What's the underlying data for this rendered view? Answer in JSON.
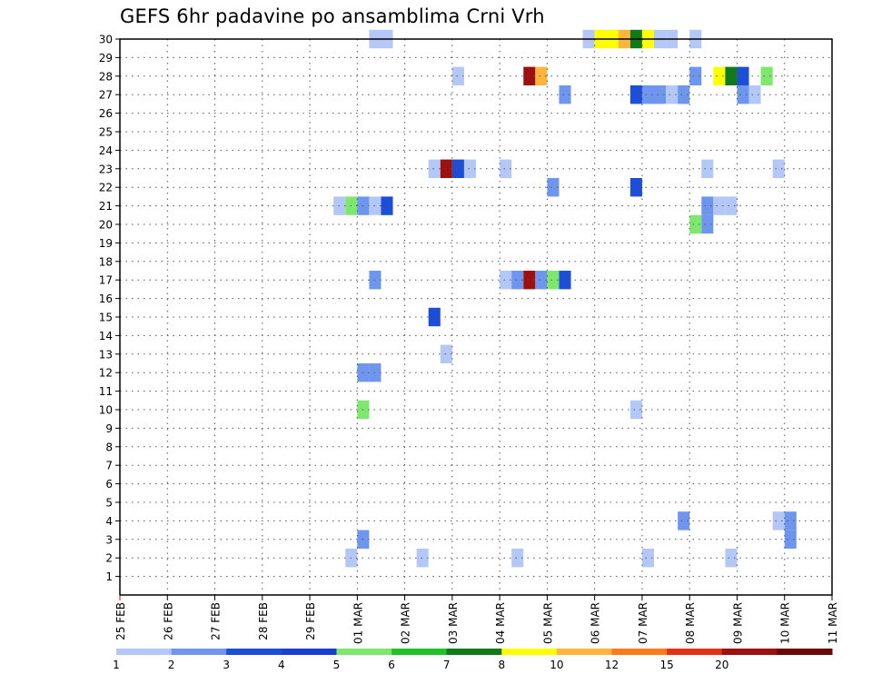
{
  "chart_data": {
    "type": "heatmap",
    "title": "GEFS 6hr padavine po ansamblima Crni Vrh",
    "y_ticks": [
      "1",
      "2",
      "3",
      "4",
      "5",
      "6",
      "7",
      "8",
      "9",
      "10",
      "11",
      "12",
      "13",
      "14",
      "15",
      "16",
      "17",
      "18",
      "19",
      "20",
      "21",
      "22",
      "23",
      "24",
      "25",
      "26",
      "27",
      "28",
      "29",
      "30"
    ],
    "ylim": [
      0,
      30
    ],
    "x_ticks": [
      "25 FEB",
      "26 FEB",
      "27 FEB",
      "28 FEB",
      "29 FEB",
      "01 MAR",
      "02 MAR",
      "03 MAR",
      "04 MAR",
      "05 MAR",
      "06 MAR",
      "07 MAR",
      "08 MAR",
      "09 MAR",
      "10 MAR",
      "11 MAR"
    ],
    "x_unit": "6-hour step (4 steps per day), 0 = 25 FEB 00Z",
    "xlim": [
      0,
      60
    ],
    "grid": true,
    "colorbar": {
      "levels": [
        "1",
        "2",
        "3",
        "4",
        "5",
        "6",
        "7",
        "8",
        "10",
        "12",
        "15",
        "20"
      ],
      "colors": [
        "#b4c8f8",
        "#6e96ee",
        "#1c4ed8",
        "#1a3fd0",
        "#7ee86c",
        "#22c02a",
        "#127a1a",
        "#ffff00",
        "#ffb43c",
        "#ff7a18",
        "#e03214",
        "#9e1010",
        "#6a0808"
      ]
    },
    "cells": [
      {
        "member": 30,
        "step": 21,
        "level": 1
      },
      {
        "member": 30,
        "step": 22,
        "level": 1
      },
      {
        "member": 30,
        "step": 39,
        "level": 1
      },
      {
        "member": 30,
        "step": 40,
        "level": 8
      },
      {
        "member": 30,
        "step": 41,
        "level": 8
      },
      {
        "member": 30,
        "step": 42,
        "level": 9
      },
      {
        "member": 30,
        "step": 43,
        "level": 7
      },
      {
        "member": 30,
        "step": 44,
        "level": 8
      },
      {
        "member": 30,
        "step": 45,
        "level": 1
      },
      {
        "member": 30,
        "step": 46,
        "level": 1
      },
      {
        "member": 30,
        "step": 48,
        "level": 1
      },
      {
        "member": 28,
        "step": 28,
        "level": 1
      },
      {
        "member": 28,
        "step": 34,
        "level": 12
      },
      {
        "member": 28,
        "step": 35,
        "level": 9
      },
      {
        "member": 28,
        "step": 48,
        "level": 2
      },
      {
        "member": 28,
        "step": 50,
        "level": 8
      },
      {
        "member": 28,
        "step": 51,
        "level": 7
      },
      {
        "member": 28,
        "step": 52,
        "level": 3
      },
      {
        "member": 28,
        "step": 54,
        "level": 5
      },
      {
        "member": 27,
        "step": 37,
        "level": 2
      },
      {
        "member": 27,
        "step": 43,
        "level": 3
      },
      {
        "member": 27,
        "step": 44,
        "level": 2
      },
      {
        "member": 27,
        "step": 45,
        "level": 2
      },
      {
        "member": 27,
        "step": 46,
        "level": 1
      },
      {
        "member": 27,
        "step": 47,
        "level": 2
      },
      {
        "member": 27,
        "step": 52,
        "level": 2
      },
      {
        "member": 27,
        "step": 53,
        "level": 1
      },
      {
        "member": 23,
        "step": 26,
        "level": 1
      },
      {
        "member": 23,
        "step": 27,
        "level": 12
      },
      {
        "member": 23,
        "step": 28,
        "level": 3
      },
      {
        "member": 23,
        "step": 29,
        "level": 1
      },
      {
        "member": 23,
        "step": 32,
        "level": 1
      },
      {
        "member": 23,
        "step": 49,
        "level": 1
      },
      {
        "member": 23,
        "step": 55,
        "level": 1
      },
      {
        "member": 22,
        "step": 36,
        "level": 2
      },
      {
        "member": 22,
        "step": 43,
        "level": 3
      },
      {
        "member": 21,
        "step": 18,
        "level": 1
      },
      {
        "member": 21,
        "step": 19,
        "level": 5
      },
      {
        "member": 21,
        "step": 20,
        "level": 2
      },
      {
        "member": 21,
        "step": 21,
        "level": 1
      },
      {
        "member": 21,
        "step": 22,
        "level": 3
      },
      {
        "member": 21,
        "step": 49,
        "level": 2
      },
      {
        "member": 21,
        "step": 50,
        "level": 1
      },
      {
        "member": 21,
        "step": 51,
        "level": 1
      },
      {
        "member": 20,
        "step": 48,
        "level": 5
      },
      {
        "member": 20,
        "step": 49,
        "level": 2
      },
      {
        "member": 17,
        "step": 21,
        "level": 2
      },
      {
        "member": 17,
        "step": 32,
        "level": 1
      },
      {
        "member": 17,
        "step": 33,
        "level": 2
      },
      {
        "member": 17,
        "step": 34,
        "level": 12
      },
      {
        "member": 17,
        "step": 35,
        "level": 2
      },
      {
        "member": 17,
        "step": 36,
        "level": 5
      },
      {
        "member": 17,
        "step": 37,
        "level": 3
      },
      {
        "member": 15,
        "step": 26,
        "level": 3
      },
      {
        "member": 13,
        "step": 27,
        "level": 1
      },
      {
        "member": 12,
        "step": 20,
        "level": 2
      },
      {
        "member": 12,
        "step": 21,
        "level": 2
      },
      {
        "member": 10,
        "step": 20,
        "level": 5
      },
      {
        "member": 10,
        "step": 43,
        "level": 1
      },
      {
        "member": 4,
        "step": 47,
        "level": 2
      },
      {
        "member": 4,
        "step": 55,
        "level": 1
      },
      {
        "member": 4,
        "step": 56,
        "level": 2
      },
      {
        "member": 3,
        "step": 20,
        "level": 2
      },
      {
        "member": 3,
        "step": 56,
        "level": 2
      },
      {
        "member": 2,
        "step": 19,
        "level": 1
      },
      {
        "member": 2,
        "step": 25,
        "level": 1
      },
      {
        "member": 2,
        "step": 33,
        "level": 1
      },
      {
        "member": 2,
        "step": 44,
        "level": 1
      },
      {
        "member": 2,
        "step": 51,
        "level": 1
      }
    ]
  }
}
